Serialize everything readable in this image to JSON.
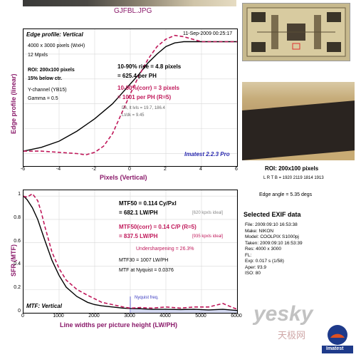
{
  "file_title": "GJFBL.JPG",
  "edge_panel": {
    "title": "Edge profile: Vertical",
    "timestamp": "11-Sep-2009 00:25:17",
    "size_line": "4000 x 3000 pixels (WxH)",
    "mpxls": "12 Mpxls",
    "roi_line": "ROI: 200x100 pixels",
    "below_ctr": "15% below ctr.",
    "channel": "Y-channel  (YB15)",
    "gamma": "Gamma = 0.5",
    "rise": "10-90% rise = 4.8 pixels",
    "rise_ph": "= 625.4 per PH",
    "corr": "10-90%(corr) = 3 pixels",
    "corr_ph": "= 1001 per PH  (R=5)",
    "dk_lt": "Dk, lt lvls = 19.7, 186.4",
    "lt_dk": "Lt/dk = 9.45",
    "watermark": "Imatest 2.2.3 Pro",
    "ylabel": "Edge profile (linear)",
    "xlabel": "Pixels (Vertical)"
  },
  "mtf_panel": {
    "title": "MTF: Vertical",
    "mtf50": "MTF50 = 0.114 Cy/Pxl",
    "mtf50_lw": "= 682.1 LW/PH",
    "mtf50_ideal": "[620 kpxls ideal]",
    "mtf50c": "MTF50(corr) = 0.14 C/P  (R=5)",
    "mtf50c_lw": "= 837.5 LW/PH",
    "mtf50c_ideal": "[935 kpxls ideal]",
    "undersharp": "Undersharpening = 26.3%",
    "mtf30": "MTF30 = 1007 LW/PH",
    "nyq": "MTF at Nyquist = 0.0376",
    "nyq_label": "Nyquist freq.",
    "ylabel": "SFR (MTF)",
    "xlabel": "Line widths per picture height (LW/PH)"
  },
  "right_panel": {
    "roi_title": "ROI: 200x100 pixels",
    "lrtb": "L R T B = 1920 2119  1814 1913",
    "edge_angle": "Edge angle = 5.35 degs",
    "exif_title": "Selected EXIF data",
    "exif": [
      "File:   2009:09:10 16:53:38",
      "Make:  NIKON",
      "Model:  COOLPIX S1000pj",
      "Taken:  2009:09:10 16:53:39",
      "Res:   4000 x 3000",
      "FL:",
      "Exp:   0.017 s (1/58)",
      "Aper:   f/3.9",
      "ISO:    80"
    ],
    "watermark_yesky": "yesky",
    "watermark_cn": "天极网",
    "logo_text": "Imatest"
  },
  "chart_data": [
    {
      "type": "line",
      "title": "Edge profile: Vertical",
      "xlabel": "Pixels (Vertical)",
      "ylabel": "Edge profile (linear)",
      "xlim": [
        -6,
        6
      ],
      "x_ticks": [
        "-6",
        "-4",
        "-2",
        "0",
        "2",
        "4",
        "6"
      ],
      "grid": true,
      "series": [
        {
          "color": "#000000",
          "x": [
            -6,
            -5,
            -4,
            -3,
            -2,
            -1,
            -0.5,
            0,
            0.5,
            1,
            1.5,
            2,
            2.5,
            3,
            4,
            5,
            6
          ],
          "y": [
            0.02,
            0.05,
            0.1,
            0.18,
            0.28,
            0.4,
            0.48,
            0.56,
            0.64,
            0.73,
            0.8,
            0.86,
            0.89,
            0.9,
            0.9,
            0.9,
            0.9
          ]
        },
        {
          "color": "#c0185a",
          "dashed": true,
          "x": [
            -6,
            -5,
            -4,
            -3,
            -2.5,
            -2,
            -1.5,
            -1,
            -0.5,
            0,
            0.5,
            1,
            1.5,
            2,
            2.5,
            3,
            3.5,
            4,
            5,
            6
          ],
          "y": [
            0.02,
            0.02,
            0.01,
            0.0,
            -0.01,
            0.01,
            0.06,
            0.16,
            0.32,
            0.48,
            0.63,
            0.76,
            0.86,
            0.92,
            0.95,
            0.94,
            0.92,
            0.9,
            0.9,
            0.9
          ]
        }
      ]
    },
    {
      "type": "line",
      "title": "MTF: Vertical",
      "xlabel": "Line widths per picture height (LW/PH)",
      "ylabel": "SFR (MTF)",
      "xlim": [
        0,
        6000
      ],
      "ylim": [
        0,
        1.05
      ],
      "x_ticks": [
        "0",
        "1000",
        "2000",
        "3000",
        "4000",
        "5000",
        "6000"
      ],
      "y_ticks": [
        "0",
        "0.2",
        "0.4",
        "0.6",
        "0.8",
        "1"
      ],
      "grid": true,
      "series": [
        {
          "color": "#000000",
          "x": [
            0,
            100,
            250,
            400,
            600,
            800,
            1000,
            1200,
            1500,
            1800,
            2000,
            2200,
            2500,
            2800,
            3000,
            3300,
            3600,
            4000,
            4400,
            4800,
            5200,
            5600,
            6000
          ],
          "y": [
            1.0,
            0.97,
            0.9,
            0.8,
            0.62,
            0.45,
            0.32,
            0.22,
            0.14,
            0.09,
            0.07,
            0.06,
            0.05,
            0.04,
            0.037,
            0.035,
            0.03,
            0.03,
            0.028,
            0.03,
            0.025,
            0.03,
            0.02
          ]
        },
        {
          "color": "#c0185a",
          "dashed": true,
          "x": [
            0,
            100,
            250,
            400,
            500,
            600,
            800,
            1000,
            1200,
            1500,
            1800,
            2000,
            2200,
            2500,
            2800,
            3000,
            3300,
            3600,
            4000,
            4400,
            4800,
            5200,
            5600,
            6000
          ],
          "y": [
            1.0,
            0.99,
            1.02,
            0.96,
            0.86,
            0.74,
            0.52,
            0.38,
            0.28,
            0.2,
            0.15,
            0.12,
            0.09,
            0.07,
            0.05,
            0.04,
            0.045,
            0.04,
            0.05,
            0.04,
            0.05,
            0.05,
            0.08,
            0.03
          ]
        }
      ]
    }
  ]
}
